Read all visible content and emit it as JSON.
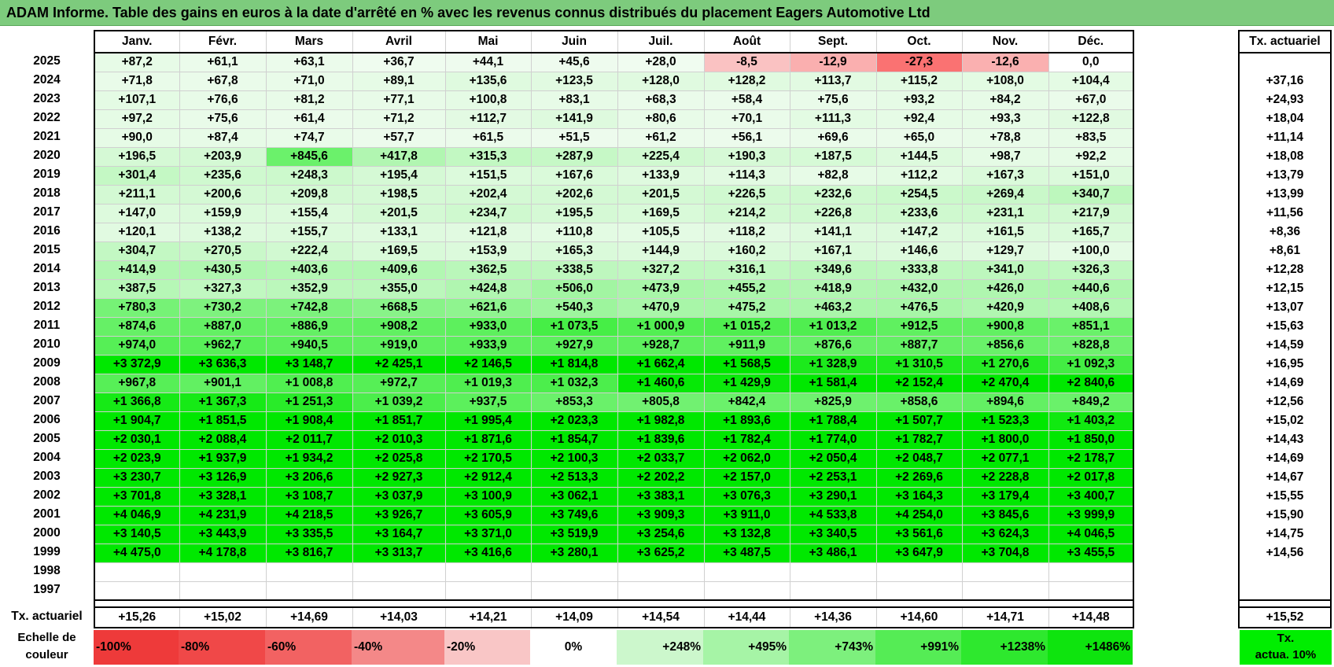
{
  "title": "ADAM Informe. Table des gains en euros à la date d'arrêté en % avec les revenus connus distribués du placement Eagers Automotive Ltd",
  "months": [
    "Janv.",
    "Févr.",
    "Mars",
    "Avril",
    "Mai",
    "Juin",
    "Juil.",
    "Août",
    "Sept.",
    "Oct.",
    "Nov.",
    "Déc."
  ],
  "side_header": "Tx. actuariel",
  "rows": [
    {
      "year": "2025",
      "cells": [
        "+87,2",
        "+61,1",
        "+63,1",
        "+36,7",
        "+44,1",
        "+45,6",
        "+28,0",
        "-8,5",
        "-12,9",
        "-27,3",
        "-12,6",
        "0,0"
      ],
      "rate": ""
    },
    {
      "year": "2024",
      "cells": [
        "+71,8",
        "+67,8",
        "+71,0",
        "+89,1",
        "+135,6",
        "+123,5",
        "+128,0",
        "+128,2",
        "+113,7",
        "+115,2",
        "+108,0",
        "+104,4"
      ],
      "rate": "+37,16"
    },
    {
      "year": "2023",
      "cells": [
        "+107,1",
        "+76,6",
        "+81,2",
        "+77,1",
        "+100,8",
        "+83,1",
        "+68,3",
        "+58,4",
        "+75,6",
        "+93,2",
        "+84,2",
        "+67,0"
      ],
      "rate": "+24,93"
    },
    {
      "year": "2022",
      "cells": [
        "+97,2",
        "+75,6",
        "+61,4",
        "+71,2",
        "+112,7",
        "+141,9",
        "+80,6",
        "+70,1",
        "+111,3",
        "+92,4",
        "+93,3",
        "+122,8"
      ],
      "rate": "+18,04"
    },
    {
      "year": "2021",
      "cells": [
        "+90,0",
        "+87,4",
        "+74,7",
        "+57,7",
        "+61,5",
        "+51,5",
        "+61,2",
        "+56,1",
        "+69,6",
        "+65,0",
        "+78,8",
        "+83,5"
      ],
      "rate": "+11,14"
    },
    {
      "year": "2020",
      "cells": [
        "+196,5",
        "+203,9",
        "+845,6",
        "+417,8",
        "+315,3",
        "+287,9",
        "+225,4",
        "+190,3",
        "+187,5",
        "+144,5",
        "+98,7",
        "+92,2"
      ],
      "rate": "+18,08"
    },
    {
      "year": "2019",
      "cells": [
        "+301,4",
        "+235,6",
        "+248,3",
        "+195,4",
        "+151,5",
        "+167,6",
        "+133,9",
        "+114,3",
        "+82,8",
        "+112,2",
        "+167,3",
        "+151,0"
      ],
      "rate": "+13,79"
    },
    {
      "year": "2018",
      "cells": [
        "+211,1",
        "+200,6",
        "+209,8",
        "+198,5",
        "+202,4",
        "+202,6",
        "+201,5",
        "+226,5",
        "+232,6",
        "+254,5",
        "+269,4",
        "+340,7"
      ],
      "rate": "+13,99"
    },
    {
      "year": "2017",
      "cells": [
        "+147,0",
        "+159,9",
        "+155,4",
        "+201,5",
        "+234,7",
        "+195,5",
        "+169,5",
        "+214,2",
        "+226,8",
        "+233,6",
        "+231,1",
        "+217,9"
      ],
      "rate": "+11,56"
    },
    {
      "year": "2016",
      "cells": [
        "+120,1",
        "+138,2",
        "+155,7",
        "+133,1",
        "+121,8",
        "+110,8",
        "+105,5",
        "+118,2",
        "+141,1",
        "+147,2",
        "+161,5",
        "+165,7"
      ],
      "rate": "+8,36"
    },
    {
      "year": "2015",
      "cells": [
        "+304,7",
        "+270,5",
        "+222,4",
        "+169,5",
        "+153,9",
        "+165,3",
        "+144,9",
        "+160,2",
        "+167,1",
        "+146,6",
        "+129,7",
        "+100,0"
      ],
      "rate": "+8,61"
    },
    {
      "year": "2014",
      "cells": [
        "+414,9",
        "+430,5",
        "+403,6",
        "+409,6",
        "+362,5",
        "+338,5",
        "+327,2",
        "+316,1",
        "+349,6",
        "+333,8",
        "+341,0",
        "+326,3"
      ],
      "rate": "+12,28"
    },
    {
      "year": "2013",
      "cells": [
        "+387,5",
        "+327,3",
        "+352,9",
        "+355,0",
        "+424,8",
        "+506,0",
        "+473,9",
        "+455,2",
        "+418,9",
        "+432,0",
        "+426,0",
        "+440,6"
      ],
      "rate": "+12,15"
    },
    {
      "year": "2012",
      "cells": [
        "+780,3",
        "+730,2",
        "+742,8",
        "+668,5",
        "+621,6",
        "+540,3",
        "+470,9",
        "+475,2",
        "+463,2",
        "+476,5",
        "+420,9",
        "+408,6"
      ],
      "rate": "+13,07"
    },
    {
      "year": "2011",
      "cells": [
        "+874,6",
        "+887,0",
        "+886,9",
        "+908,2",
        "+933,0",
        "+1 073,5",
        "+1 000,9",
        "+1 015,2",
        "+1 013,2",
        "+912,5",
        "+900,8",
        "+851,1"
      ],
      "rate": "+15,63"
    },
    {
      "year": "2010",
      "cells": [
        "+974,0",
        "+962,7",
        "+940,5",
        "+919,0",
        "+933,9",
        "+927,9",
        "+928,7",
        "+911,9",
        "+876,6",
        "+887,7",
        "+856,6",
        "+828,8"
      ],
      "rate": "+14,59"
    },
    {
      "year": "2009",
      "cells": [
        "+3 372,9",
        "+3 636,3",
        "+3 148,7",
        "+2 425,1",
        "+2 146,5",
        "+1 814,8",
        "+1 662,4",
        "+1 568,5",
        "+1 328,9",
        "+1 310,5",
        "+1 270,6",
        "+1 092,3"
      ],
      "rate": "+16,95"
    },
    {
      "year": "2008",
      "cells": [
        "+967,8",
        "+901,1",
        "+1 008,8",
        "+972,7",
        "+1 019,3",
        "+1 032,3",
        "+1 460,6",
        "+1 429,9",
        "+1 581,4",
        "+2 152,4",
        "+2 470,4",
        "+2 840,6"
      ],
      "rate": "+14,69"
    },
    {
      "year": "2007",
      "cells": [
        "+1 366,8",
        "+1 367,3",
        "+1 251,3",
        "+1 039,2",
        "+937,5",
        "+853,3",
        "+805,8",
        "+842,4",
        "+825,9",
        "+858,6",
        "+894,6",
        "+849,2"
      ],
      "rate": "+12,56"
    },
    {
      "year": "2006",
      "cells": [
        "+1 904,7",
        "+1 851,5",
        "+1 908,4",
        "+1 851,7",
        "+1 995,4",
        "+2 023,3",
        "+1 982,8",
        "+1 893,6",
        "+1 788,4",
        "+1 507,7",
        "+1 523,3",
        "+1 403,2"
      ],
      "rate": "+15,02"
    },
    {
      "year": "2005",
      "cells": [
        "+2 030,1",
        "+2 088,4",
        "+2 011,7",
        "+2 010,3",
        "+1 871,6",
        "+1 854,7",
        "+1 839,6",
        "+1 782,4",
        "+1 774,0",
        "+1 782,7",
        "+1 800,0",
        "+1 850,0"
      ],
      "rate": "+14,43"
    },
    {
      "year": "2004",
      "cells": [
        "+2 023,9",
        "+1 937,9",
        "+1 934,2",
        "+2 025,8",
        "+2 170,5",
        "+2 100,3",
        "+2 033,7",
        "+2 062,0",
        "+2 050,4",
        "+2 048,7",
        "+2 077,1",
        "+2 178,7"
      ],
      "rate": "+14,69"
    },
    {
      "year": "2003",
      "cells": [
        "+3 230,7",
        "+3 126,9",
        "+3 206,6",
        "+2 927,3",
        "+2 912,4",
        "+2 513,3",
        "+2 202,2",
        "+2 157,0",
        "+2 253,1",
        "+2 269,6",
        "+2 228,8",
        "+2 017,8"
      ],
      "rate": "+14,67"
    },
    {
      "year": "2002",
      "cells": [
        "+3 701,8",
        "+3 328,1",
        "+3 108,7",
        "+3 037,9",
        "+3 100,9",
        "+3 062,1",
        "+3 383,1",
        "+3 076,3",
        "+3 290,1",
        "+3 164,3",
        "+3 179,4",
        "+3 400,7"
      ],
      "rate": "+15,55"
    },
    {
      "year": "2001",
      "cells": [
        "+4 046,9",
        "+4 231,9",
        "+4 218,5",
        "+3 926,7",
        "+3 605,9",
        "+3 749,6",
        "+3 909,3",
        "+3 911,0",
        "+4 533,8",
        "+4 254,0",
        "+3 845,6",
        "+3 999,9"
      ],
      "rate": "+15,90"
    },
    {
      "year": "2000",
      "cells": [
        "+3 140,5",
        "+3 443,9",
        "+3 335,5",
        "+3 164,7",
        "+3 371,0",
        "+3 519,9",
        "+3 254,6",
        "+3 132,8",
        "+3 340,5",
        "+3 561,6",
        "+3 624,3",
        "+4 046,5"
      ],
      "rate": "+14,75"
    },
    {
      "year": "1999",
      "cells": [
        "+4 475,0",
        "+4 178,8",
        "+3 816,7",
        "+3 313,7",
        "+3 416,6",
        "+3 280,1",
        "+3 625,2",
        "+3 487,5",
        "+3 486,1",
        "+3 647,9",
        "+3 704,8",
        "+3 455,5"
      ],
      "rate": "+14,56"
    },
    {
      "year": "1998",
      "cells": [
        "",
        "",
        "",
        "",
        "",
        "",
        "",
        "",
        "",
        "",
        "",
        ""
      ],
      "rate": ""
    },
    {
      "year": "1997",
      "cells": [
        "",
        "",
        "",
        "",
        "",
        "",
        "",
        "",
        "",
        "",
        "",
        ""
      ],
      "rate": ""
    }
  ],
  "footer": {
    "label": "Tx. actuariel",
    "cells": [
      "+15,26",
      "+15,02",
      "+14,69",
      "+14,03",
      "+14,21",
      "+14,09",
      "+14,54",
      "+14,44",
      "+14,36",
      "+14,60",
      "+14,71",
      "+14,48"
    ],
    "total": "+15,52"
  },
  "legend": {
    "label_line1": "Echelle de",
    "label_line2": "couleur",
    "items": [
      {
        "text": "-100%",
        "color": "#ee3a3a",
        "align": "left"
      },
      {
        "text": "-80%",
        "color": "#f04848",
        "align": "left"
      },
      {
        "text": "-60%",
        "color": "#f26262",
        "align": "left"
      },
      {
        "text": "-40%",
        "color": "#f48888",
        "align": "left"
      },
      {
        "text": "-20%",
        "color": "#f9c6c6",
        "align": "left"
      },
      {
        "text": "0%",
        "color": "#ffffff",
        "align": "center"
      },
      {
        "text": "+248%",
        "color": "#ccf7cc",
        "align": "right"
      },
      {
        "text": "+495%",
        "color": "#a6f4a6",
        "align": "right"
      },
      {
        "text": "+743%",
        "color": "#7df07d",
        "align": "right"
      },
      {
        "text": "+991%",
        "color": "#55ec55",
        "align": "right"
      },
      {
        "text": "+1238%",
        "color": "#2ee82e",
        "align": "right"
      },
      {
        "text": "+1486%",
        "color": "#0ee40e",
        "align": "right"
      }
    ],
    "side_line1": "Tx.",
    "side_line2": "actua. 10%",
    "side_color": "#00ee00"
  }
}
